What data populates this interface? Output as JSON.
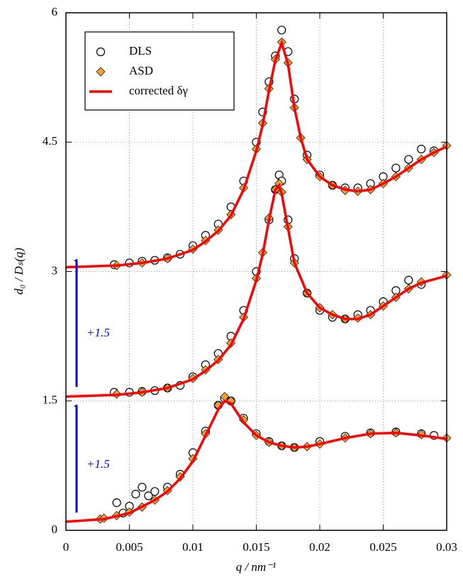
{
  "chart_data": {
    "type": "line",
    "xlabel": "q / nm⁻¹",
    "ylabel": "d₀ / Dₛ(q)",
    "xlim": [
      0,
      0.03
    ],
    "xticks": [
      0,
      0.005,
      0.01,
      0.015,
      0.02,
      0.025,
      0.03
    ],
    "ylim": [
      0,
      6
    ],
    "yticks": [
      0,
      1.5,
      3,
      4.5,
      6
    ],
    "grid": true,
    "legend": "upper left",
    "annotations": [
      "+1.5",
      "+1.5"
    ],
    "series": [
      {
        "name": "DLS",
        "type": "scatter",
        "marker": "circle",
        "color": "#000000",
        "x": [
          0.004,
          0.0045,
          0.005,
          0.0055,
          0.006,
          0.0065,
          0.007,
          0.008,
          0.009,
          0.01,
          0.011,
          0.012,
          0.0125,
          0.013,
          0.014,
          0.015,
          0.016,
          0.017,
          0.018,
          0.02,
          0.022,
          0.024,
          0.026,
          0.028,
          0.029,
          0.0038,
          0.005,
          0.006,
          0.007,
          0.008,
          0.009,
          0.01,
          0.011,
          0.012,
          0.013,
          0.014,
          0.015,
          0.016,
          0.0165,
          0.0168,
          0.017,
          0.0175,
          0.018,
          0.019,
          0.02,
          0.021,
          0.022,
          0.023,
          0.024,
          0.025,
          0.026,
          0.027,
          0.028,
          0.0038,
          0.005,
          0.006,
          0.007,
          0.008,
          0.009,
          0.01,
          0.011,
          0.012,
          0.013,
          0.014,
          0.015,
          0.0155,
          0.016,
          0.0165,
          0.017,
          0.0175,
          0.018,
          0.019,
          0.02,
          0.021,
          0.022,
          0.023,
          0.024,
          0.025,
          0.026,
          0.027,
          0.028,
          0.029
        ],
        "values": [
          0.32,
          0.2,
          0.28,
          0.42,
          0.5,
          0.4,
          0.45,
          0.5,
          0.65,
          0.9,
          1.15,
          1.45,
          1.53,
          1.5,
          1.3,
          1.12,
          1.03,
          0.98,
          0.96,
          1.03,
          1.09,
          1.13,
          1.14,
          1.12,
          1.1,
          1.6,
          1.6,
          1.61,
          1.62,
          1.65,
          1.68,
          1.78,
          1.92,
          2.05,
          2.25,
          2.55,
          3.0,
          3.6,
          3.95,
          4.12,
          4.05,
          3.6,
          3.15,
          2.75,
          2.55,
          2.47,
          2.45,
          2.5,
          2.55,
          2.65,
          2.78,
          2.9,
          2.85,
          3.08,
          3.1,
          3.12,
          3.13,
          3.16,
          3.2,
          3.3,
          3.42,
          3.55,
          3.75,
          4.05,
          4.5,
          4.85,
          5.2,
          5.5,
          5.8,
          5.55,
          5.0,
          4.35,
          4.12,
          4.0,
          3.97,
          3.97,
          4.02,
          4.1,
          4.2,
          4.3,
          4.42,
          4.4
        ]
      },
      {
        "name": "ASD",
        "type": "scatter",
        "marker": "diamond",
        "color": "#f0a030",
        "x": [
          0.0027,
          0.003,
          0.004,
          0.005,
          0.006,
          0.007,
          0.008,
          0.009,
          0.01,
          0.011,
          0.012,
          0.0125,
          0.013,
          0.014,
          0.015,
          0.016,
          0.017,
          0.018,
          0.019,
          0.02,
          0.022,
          0.024,
          0.026,
          0.028,
          0.03,
          0.004,
          0.006,
          0.008,
          0.01,
          0.011,
          0.012,
          0.013,
          0.014,
          0.015,
          0.0155,
          0.016,
          0.0165,
          0.0168,
          0.017,
          0.0175,
          0.018,
          0.019,
          0.02,
          0.021,
          0.022,
          0.023,
          0.024,
          0.025,
          0.026,
          0.027,
          0.028,
          0.03,
          0.004,
          0.006,
          0.008,
          0.01,
          0.011,
          0.012,
          0.013,
          0.014,
          0.015,
          0.0155,
          0.016,
          0.0165,
          0.017,
          0.0175,
          0.018,
          0.0185,
          0.019,
          0.02,
          0.021,
          0.022,
          0.023,
          0.024,
          0.025,
          0.026,
          0.027,
          0.028,
          0.029,
          0.03
        ],
        "values": [
          0.13,
          0.14,
          0.17,
          0.21,
          0.27,
          0.35,
          0.46,
          0.62,
          0.83,
          1.12,
          1.45,
          1.55,
          1.5,
          1.28,
          1.1,
          1.02,
          0.98,
          0.96,
          0.97,
          1.0,
          1.07,
          1.12,
          1.13,
          1.11,
          1.07,
          1.58,
          1.6,
          1.65,
          1.76,
          1.86,
          1.98,
          2.17,
          2.47,
          2.92,
          3.22,
          3.62,
          3.95,
          4.02,
          3.92,
          3.52,
          3.1,
          2.75,
          2.58,
          2.5,
          2.45,
          2.46,
          2.5,
          2.6,
          2.7,
          2.8,
          2.88,
          2.96,
          3.07,
          3.1,
          3.15,
          3.26,
          3.36,
          3.48,
          3.66,
          3.97,
          4.42,
          4.72,
          5.12,
          5.46,
          5.66,
          5.42,
          4.9,
          4.55,
          4.3,
          4.1,
          4.0,
          3.94,
          3.93,
          3.95,
          4.02,
          4.1,
          4.2,
          4.3,
          4.38,
          4.46
        ]
      },
      {
        "name": "corrected δγ",
        "type": "line",
        "color": "#ff0000",
        "x": [
          0,
          0.003,
          0.005,
          0.007,
          0.008,
          0.009,
          0.01,
          0.011,
          0.012,
          0.0125,
          0.013,
          0.014,
          0.015,
          0.016,
          0.017,
          0.018,
          0.019,
          0.02,
          0.022,
          0.024,
          0.026,
          0.028,
          0.03,
          null,
          0,
          0.004,
          0.006,
          0.008,
          0.01,
          0.011,
          0.012,
          0.013,
          0.014,
          0.015,
          0.0155,
          0.016,
          0.0165,
          0.0168,
          0.017,
          0.0175,
          0.018,
          0.019,
          0.02,
          0.021,
          0.022,
          0.023,
          0.024,
          0.025,
          0.026,
          0.027,
          0.028,
          0.03,
          null,
          0,
          0.004,
          0.006,
          0.008,
          0.01,
          0.011,
          0.012,
          0.013,
          0.014,
          0.015,
          0.0155,
          0.016,
          0.0165,
          0.017,
          0.0175,
          0.018,
          0.0185,
          0.019,
          0.02,
          0.021,
          0.022,
          0.023,
          0.024,
          0.025,
          0.026,
          0.027,
          0.028,
          0.029,
          0.03
        ],
        "values": [
          0.1,
          0.13,
          0.2,
          0.35,
          0.45,
          0.6,
          0.8,
          1.1,
          1.4,
          1.5,
          1.47,
          1.25,
          1.1,
          1.02,
          0.98,
          0.96,
          0.97,
          1.0,
          1.07,
          1.12,
          1.13,
          1.1,
          1.06,
          null,
          1.55,
          1.57,
          1.6,
          1.65,
          1.75,
          1.85,
          1.97,
          2.15,
          2.45,
          2.9,
          3.2,
          3.6,
          3.95,
          4.0,
          3.9,
          3.5,
          3.1,
          2.75,
          2.58,
          2.5,
          2.45,
          2.45,
          2.5,
          2.6,
          2.7,
          2.8,
          2.87,
          2.95,
          null,
          3.05,
          3.07,
          3.1,
          3.15,
          3.25,
          3.35,
          3.47,
          3.65,
          3.95,
          4.4,
          4.7,
          5.1,
          5.45,
          5.65,
          5.4,
          4.9,
          4.55,
          4.3,
          4.1,
          4.0,
          3.95,
          3.93,
          3.95,
          4.02,
          4.1,
          4.2,
          4.3,
          4.38,
          4.45
        ]
      }
    ]
  }
}
